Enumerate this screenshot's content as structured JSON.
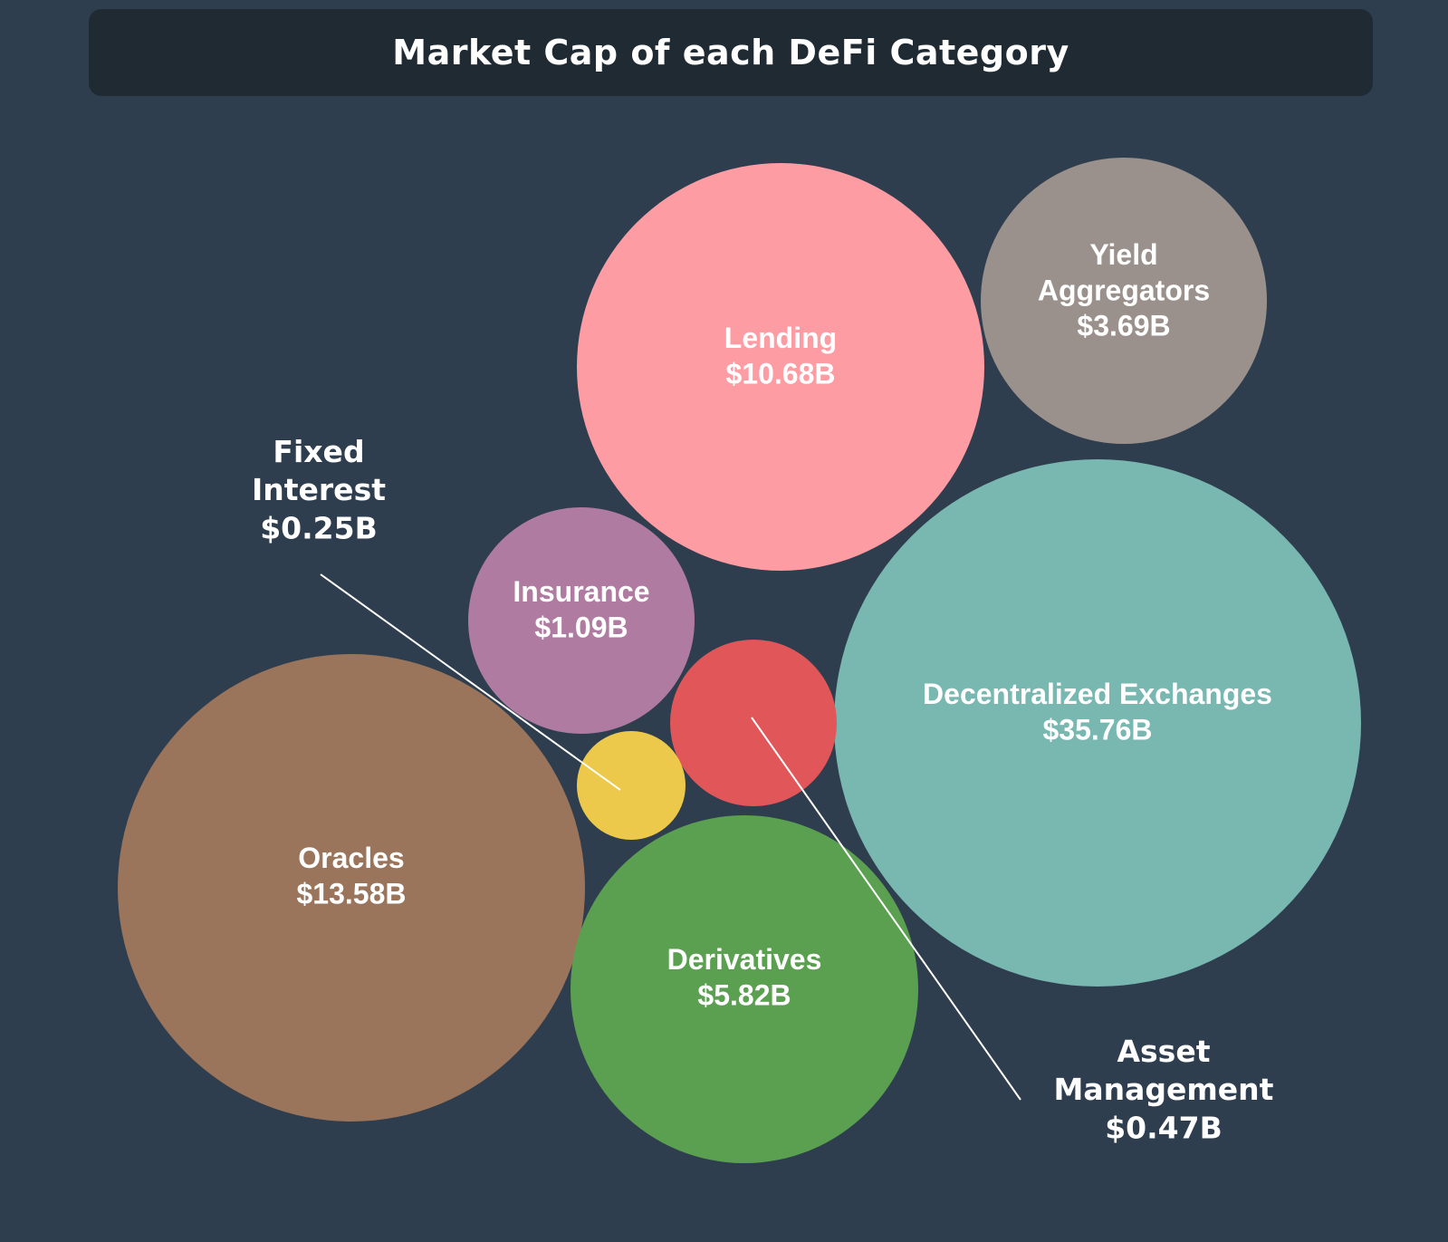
{
  "title": "Market Cap of each DeFi Category",
  "chart_data": {
    "type": "bubble",
    "title": "Market Cap of each DeFi Category",
    "unit": "$B",
    "series": [
      {
        "name": "Decentralized Exchanges",
        "value": 35.76,
        "value_label": "$35.76B",
        "color": "#79b7b1"
      },
      {
        "name": "Oracles",
        "value": 13.58,
        "value_label": "$13.58B",
        "color": "#9a755c"
      },
      {
        "name": "Lending",
        "value": 10.68,
        "value_label": "$10.68B",
        "color": "#fe9ca3"
      },
      {
        "name": "Derivatives",
        "value": 5.82,
        "value_label": "$5.82B",
        "color": "#5ba050"
      },
      {
        "name": "Yield Aggregators",
        "value": 3.69,
        "value_label": "$3.69B",
        "color": "#9b918c"
      },
      {
        "name": "Insurance",
        "value": 1.09,
        "value_label": "$1.09B",
        "color": "#af7ba1"
      },
      {
        "name": "Asset Management",
        "value": 0.47,
        "value_label": "$0.47B",
        "color": "#e05659"
      },
      {
        "name": "Fixed Interest",
        "value": 0.25,
        "value_label": "$0.25B",
        "color": "#ecc94b"
      }
    ]
  }
}
